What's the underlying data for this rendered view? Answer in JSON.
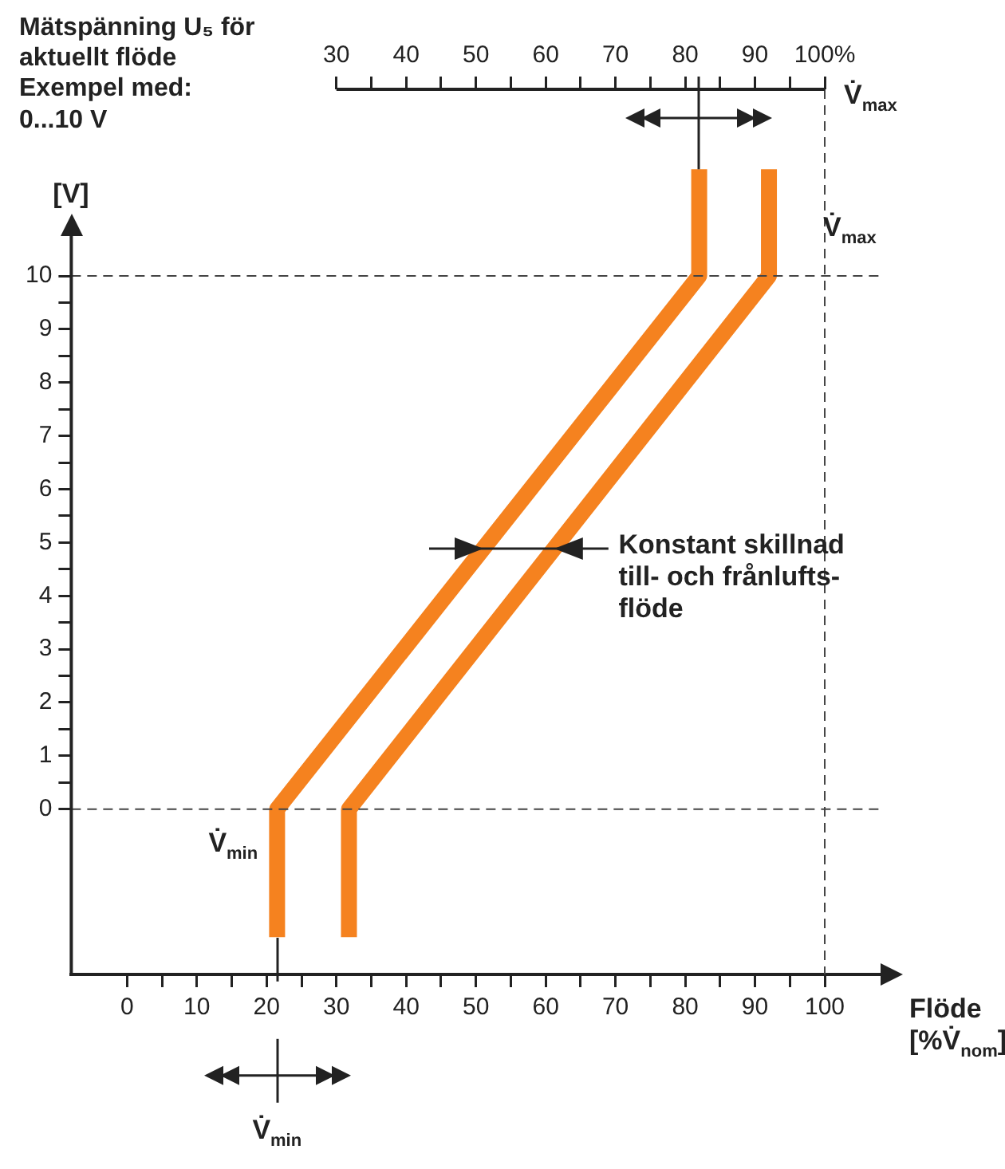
{
  "chart_data": {
    "type": "line",
    "title": "Mätspänning U₅ för\naktuellt flöde\nExempel med:\n0...10 V",
    "xlabel": "Flöde\n[%V̇$_{nom}$]",
    "ylabel": "[V]",
    "x2label": "V̇$_{max}$",
    "series": [
      {
        "color": "#f5821f",
        "x": [
          21.5,
          21.5,
          82,
          82
        ],
        "values": [
          -2.4,
          0,
          10,
          12
        ]
      },
      {
        "color": "#f5821f",
        "x": [
          31.8,
          31.8,
          92,
          92
        ],
        "values": [
          -2.4,
          0,
          10,
          12
        ]
      }
    ],
    "xlim": [
      -8,
      108
    ],
    "ylim": [
      -3.1,
      13.5
    ],
    "x2lim": [
      -8,
      108
    ],
    "xticks": [
      0,
      {
        "value": 5,
        "label": null
      },
      10,
      {
        "value": 15,
        "label": null
      },
      20,
      {
        "value": 25,
        "label": null
      },
      30,
      {
        "value": 35,
        "label": null
      },
      40,
      {
        "value": 45,
        "label": null
      },
      50,
      {
        "value": 55,
        "label": null
      },
      60,
      {
        "value": 65,
        "label": null
      },
      70,
      {
        "value": 75,
        "label": null
      },
      80,
      {
        "value": 85,
        "label": null
      },
      90,
      {
        "value": 95,
        "label": null
      },
      100
    ],
    "x2ticks": [
      30,
      {
        "value": 35,
        "label": null
      },
      40,
      {
        "value": 45,
        "label": null
      },
      50,
      {
        "value": 55,
        "label": null
      },
      60,
      {
        "value": 65,
        "label": null
      },
      70,
      {
        "value": 75,
        "label": null
      },
      80,
      {
        "value": 85,
        "label": null
      },
      90,
      {
        "value": 95,
        "label": null
      },
      {
        "value": 100,
        "label": "100%"
      }
    ],
    "yticks": [
      0,
      {
        "value": 0.5,
        "label": null
      },
      1,
      {
        "value": 1.5,
        "label": null
      },
      2,
      {
        "value": 2.5,
        "label": null
      },
      3,
      {
        "value": 3.5,
        "label": null
      },
      4,
      {
        "value": 4.5,
        "label": null
      },
      5,
      {
        "value": 5.5,
        "label": null
      },
      6,
      {
        "value": 6.5,
        "label": null
      },
      7,
      {
        "value": 7.5,
        "label": null
      },
      8,
      {
        "value": 8.5,
        "label": null
      },
      9,
      {
        "value": 9.5,
        "label": null
      },
      10
    ],
    "ref_lines": [
      {
        "axis": "y",
        "value": 0,
        "color": "#444444",
        "line_style": "dashed"
      },
      {
        "axis": "y",
        "value": 10,
        "color": "#444444",
        "line_style": "dashed"
      },
      {
        "axis": "x",
        "value": 100,
        "color": "#444444",
        "line_style": "dashed"
      }
    ],
    "annotations": [
      "V̇$_{max}$",
      "V̇$_{min}$",
      "Konstant skillnad\ntill- och frånlufts-\nflöde",
      "V̇$_{min}$"
    ],
    "grid": false,
    "legend": false,
    "marker": "none",
    "line_style": "solid"
  }
}
